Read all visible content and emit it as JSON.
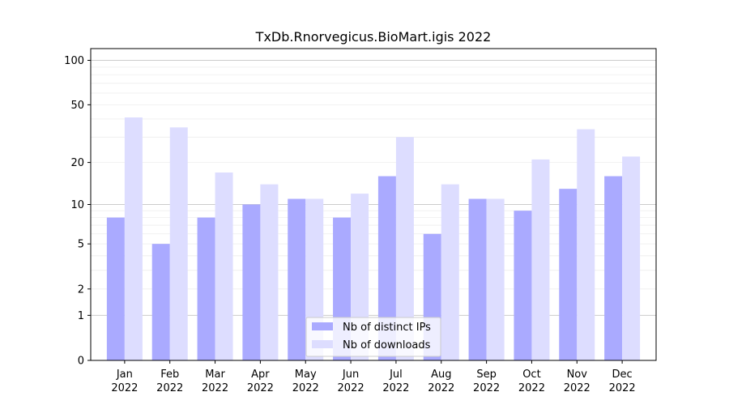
{
  "chart_data": {
    "type": "bar",
    "title": "TxDb.Rnorvegicus.BioMart.igis 2022",
    "xlabel": "",
    "ylabel": "",
    "yscale": "log(1+y)",
    "ylim": [
      0,
      120
    ],
    "yticks": [
      0,
      1,
      2,
      5,
      10,
      20,
      50,
      100
    ],
    "ytick_labels": [
      "0",
      "1",
      "2",
      "5",
      "10",
      "20",
      "50",
      "100"
    ],
    "categories": [
      [
        "Jan",
        "2022"
      ],
      [
        "Feb",
        "2022"
      ],
      [
        "Mar",
        "2022"
      ],
      [
        "Apr",
        "2022"
      ],
      [
        "May",
        "2022"
      ],
      [
        "Jun",
        "2022"
      ],
      [
        "Jul",
        "2022"
      ],
      [
        "Aug",
        "2022"
      ],
      [
        "Sep",
        "2022"
      ],
      [
        "Oct",
        "2022"
      ],
      [
        "Nov",
        "2022"
      ],
      [
        "Dec",
        "2022"
      ]
    ],
    "series": [
      {
        "name": "Nb of distinct IPs",
        "color": "#aaaaff",
        "values": [
          8,
          5,
          8,
          10,
          11,
          8,
          16,
          6,
          11,
          9,
          13,
          16
        ]
      },
      {
        "name": "Nb of downloads",
        "color": "#ddddff",
        "values": [
          41,
          35,
          17,
          14,
          11,
          12,
          30,
          14,
          11,
          21,
          34,
          22
        ]
      }
    ],
    "grid": true,
    "legend": "bottom-center"
  }
}
